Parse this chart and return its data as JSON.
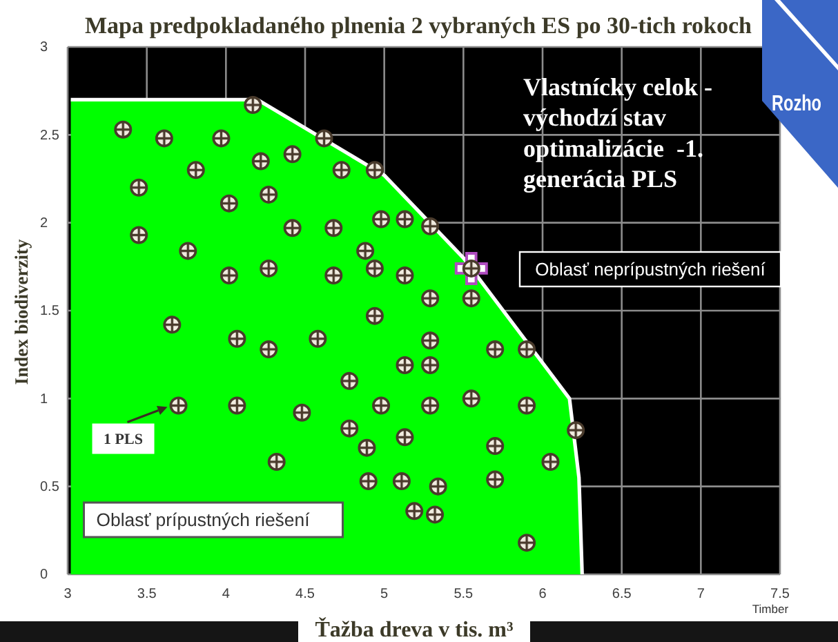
{
  "chart_data": {
    "type": "scatter",
    "title": "Mapa predpokladaného plnenia 2 vybraných ES po 30-tich rokoch",
    "xlabel": "Ťažba dreva v tis. m³",
    "ylabel": "Index biodiverzity",
    "xlim": [
      3,
      7.5
    ],
    "ylim": [
      0,
      3
    ],
    "xticks": [
      3,
      3.5,
      4,
      4.5,
      5,
      5.5,
      6,
      6.5,
      7,
      7.5
    ],
    "yticks": [
      0,
      0.5,
      1,
      1.5,
      2,
      2.5,
      3
    ],
    "grid": true,
    "series": [
      {
        "type": "area",
        "color": "#00ff00",
        "x": [
          3.02,
          4.2,
          5.0,
          5.5,
          6.17,
          6.23,
          6.25
        ],
        "values": [
          2.7,
          2.7,
          2.27,
          1.8,
          1.0,
          0.55,
          0
        ]
      },
      {
        "marker": "cross",
        "color": "#b04cc0",
        "x": [
          5.55
        ],
        "values": [
          1.74
        ]
      },
      {
        "marker": "circle",
        "color": "#4a3b2c",
        "x": [
          4.17,
          3.35,
          3.61,
          3.97,
          4.62,
          3.81,
          4.22,
          4.42,
          4.73,
          4.94,
          3.45,
          4.02,
          4.27,
          4.98,
          3.45,
          4.42,
          4.68,
          3.76,
          4.88,
          4.94,
          4.02,
          4.27,
          4.68,
          4.94,
          3.66,
          4.07,
          4.27,
          4.58,
          5.13,
          5.29,
          5.13,
          5.55,
          5.29,
          5.55,
          5.29,
          5.7,
          5.9,
          5.13,
          5.29,
          4.78,
          3.7,
          4.07,
          4.48,
          4.98,
          5.29,
          5.55,
          5.9,
          6.21,
          4.78,
          4.89,
          4.32,
          5.13,
          5.7,
          6.05,
          4.9,
          5.11,
          5.34,
          5.7,
          5.19,
          5.32,
          5.9
        ],
        "values": [
          2.67,
          2.53,
          2.48,
          2.48,
          2.48,
          2.3,
          2.35,
          2.39,
          2.3,
          2.3,
          2.2,
          2.11,
          2.16,
          2.02,
          1.93,
          1.97,
          1.97,
          1.84,
          1.84,
          1.74,
          1.7,
          1.74,
          1.7,
          1.47,
          1.42,
          1.34,
          1.28,
          1.34,
          2.02,
          1.98,
          1.7,
          1.74,
          1.57,
          1.57,
          1.33,
          1.28,
          1.28,
          1.19,
          1.19,
          1.1,
          0.96,
          0.96,
          0.92,
          0.96,
          0.96,
          1.0,
          0.96,
          0.82,
          0.83,
          0.72,
          0.64,
          0.78,
          0.73,
          0.64,
          0.53,
          0.53,
          0.5,
          0.54,
          0.36,
          0.34,
          0.18
        ]
      }
    ],
    "annotations": [
      "Vlastnícky celok -\nvýchodzí stav\noptimalizácie  -1.\ngenerácia PLS",
      "Oblasť neprípustných riešení",
      {
        "text": "1 PLS",
        "x": 3.7,
        "y": 0.96
      },
      "Oblasť prípustných riešení",
      "Timber",
      "Rozho"
    ]
  }
}
